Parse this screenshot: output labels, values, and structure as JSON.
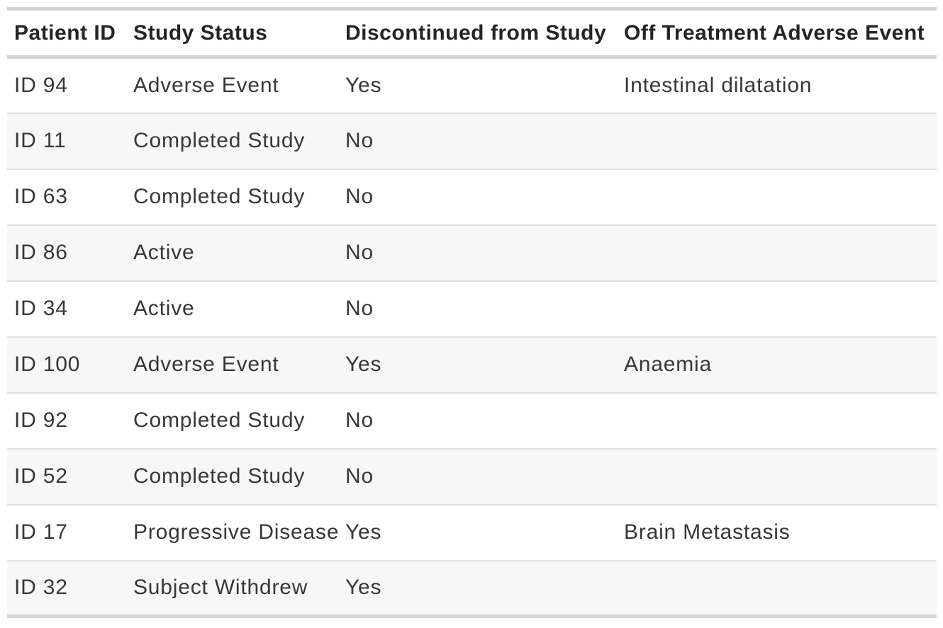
{
  "colors": {
    "background": "#ffffff",
    "row_stripe": "#f7f7f7",
    "border_thick": "#d4d4d4",
    "border_thin": "#e0e0e0",
    "header_text": "#242424",
    "body_text": "#373737"
  },
  "table": {
    "columns": [
      {
        "key": "patient_id",
        "label": "Patient ID"
      },
      {
        "key": "study_status",
        "label": "Study Status"
      },
      {
        "key": "discontinued",
        "label": "Discontinued from Study"
      },
      {
        "key": "adverse_event",
        "label": "Off Treatment Adverse Event"
      }
    ],
    "rows": [
      {
        "patient_id": "ID 94",
        "study_status": "Adverse Event",
        "discontinued": "Yes",
        "adverse_event": "Intestinal dilatation"
      },
      {
        "patient_id": "ID 11",
        "study_status": "Completed Study",
        "discontinued": "No",
        "adverse_event": ""
      },
      {
        "patient_id": "ID 63",
        "study_status": "Completed Study",
        "discontinued": "No",
        "adverse_event": ""
      },
      {
        "patient_id": "ID 86",
        "study_status": "Active",
        "discontinued": "No",
        "adverse_event": ""
      },
      {
        "patient_id": "ID 34",
        "study_status": "Active",
        "discontinued": "No",
        "adverse_event": ""
      },
      {
        "patient_id": "ID 100",
        "study_status": "Adverse Event",
        "discontinued": "Yes",
        "adverse_event": "Anaemia"
      },
      {
        "patient_id": "ID 92",
        "study_status": "Completed Study",
        "discontinued": "No",
        "adverse_event": ""
      },
      {
        "patient_id": "ID 52",
        "study_status": "Completed Study",
        "discontinued": "No",
        "adverse_event": ""
      },
      {
        "patient_id": "ID 17",
        "study_status": "Progressive Disease",
        "discontinued": "Yes",
        "adverse_event": "Brain Metastasis"
      },
      {
        "patient_id": "ID 32",
        "study_status": "Subject Withdrew",
        "discontinued": "Yes",
        "adverse_event": ""
      }
    ]
  }
}
